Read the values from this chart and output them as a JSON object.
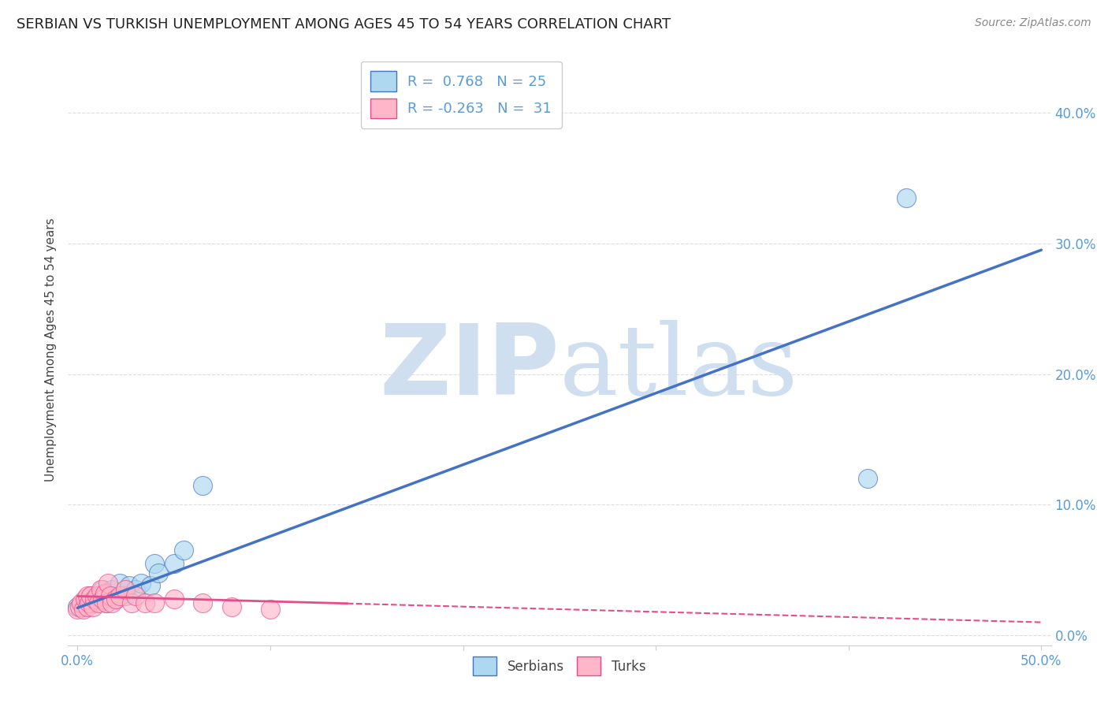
{
  "title": "SERBIAN VS TURKISH UNEMPLOYMENT AMONG AGES 45 TO 54 YEARS CORRELATION CHART",
  "source": "Source: ZipAtlas.com",
  "xlim": [
    -0.005,
    0.505
  ],
  "ylim": [
    -0.008,
    0.445
  ],
  "serbian_R": 0.768,
  "serbian_N": 25,
  "turkish_R": -0.263,
  "turkish_N": 31,
  "serbian_color": "#ADD8F0",
  "turkish_color": "#FFB6C8",
  "serbian_edge": "#4472C4",
  "turkish_edge": "#E84B8A",
  "serbian_x": [
    0.0,
    0.003,
    0.005,
    0.007,
    0.008,
    0.01,
    0.012,
    0.013,
    0.015,
    0.017,
    0.018,
    0.02,
    0.022,
    0.025,
    0.027,
    0.03,
    0.033,
    0.038,
    0.04,
    0.042,
    0.05,
    0.055,
    0.065,
    0.41,
    0.43
  ],
  "serbian_y": [
    0.022,
    0.022,
    0.025,
    0.03,
    0.025,
    0.028,
    0.03,
    0.035,
    0.025,
    0.03,
    0.035,
    0.028,
    0.04,
    0.03,
    0.038,
    0.035,
    0.04,
    0.038,
    0.055,
    0.048,
    0.055,
    0.065,
    0.115,
    0.12,
    0.335
  ],
  "turkish_x": [
    0.0,
    0.001,
    0.002,
    0.003,
    0.004,
    0.005,
    0.005,
    0.006,
    0.007,
    0.008,
    0.009,
    0.01,
    0.011,
    0.012,
    0.013,
    0.014,
    0.015,
    0.016,
    0.017,
    0.018,
    0.02,
    0.022,
    0.025,
    0.028,
    0.03,
    0.035,
    0.04,
    0.05,
    0.065,
    0.08,
    0.1
  ],
  "turkish_y": [
    0.02,
    0.022,
    0.025,
    0.02,
    0.028,
    0.022,
    0.03,
    0.025,
    0.03,
    0.022,
    0.028,
    0.03,
    0.025,
    0.035,
    0.028,
    0.032,
    0.025,
    0.04,
    0.03,
    0.025,
    0.028,
    0.03,
    0.035,
    0.025,
    0.03,
    0.025,
    0.025,
    0.028,
    0.025,
    0.022,
    0.02
  ],
  "serbian_line_x": [
    0.0,
    0.5
  ],
  "serbian_line_y": [
    0.021,
    0.295
  ],
  "turkish_line_x": [
    0.0,
    0.5
  ],
  "turkish_line_y": [
    0.03,
    0.01
  ],
  "watermark_zip": "ZIP",
  "watermark_atlas": "atlas",
  "watermark_color": "#D0DFF0",
  "background_color": "#FFFFFF",
  "title_fontsize": 13,
  "tick_color": "#5B9BD5",
  "grid_color": "#DDDDDD",
  "ylabel": "Unemployment Among Ages 45 to 54 years",
  "ytick_vals": [
    0.0,
    0.1,
    0.2,
    0.3,
    0.4
  ],
  "xtick_show": [
    0.0,
    0.5
  ],
  "xtick_minor": [
    0.1,
    0.2,
    0.3,
    0.4
  ]
}
